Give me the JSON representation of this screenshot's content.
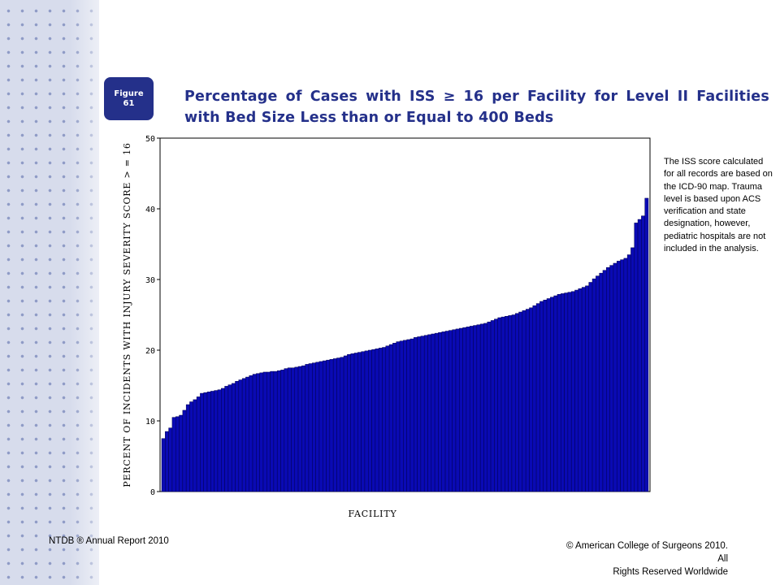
{
  "figure_badge": {
    "line1": "Figure",
    "line2": "61"
  },
  "title": "Percentage of Cases with ISS ≥ 16 per Facility for Level II Facilities with Bed Size Less than or Equal to 400 Beds",
  "note": "The ISS score calculated for all records are based on the ICD-90 map. Trauma level is based upon ACS verification and state designation, however, pediatric hospitals are not included in the analysis.",
  "footer": {
    "left": "NTDB ® Annual Report 2010",
    "right_line1": "© American College of Surgeons 2010.  All",
    "right_line2": "Rights Reserved Worldwide"
  },
  "colors": {
    "bar": "#0a0ab4",
    "bar_edge": "#000050",
    "title": "#24308a",
    "badge": "#24308a"
  },
  "chart_data": {
    "type": "bar",
    "xlabel": "FACILITY",
    "ylabel": "PERCENT OF INCIDENTS WITH INJURY SEVERITY SCORE > = 16",
    "ylim": [
      0,
      50
    ],
    "yticks": [
      "0",
      "10",
      "20",
      "30",
      "40",
      "50"
    ],
    "grid": false,
    "sorted": "ascending",
    "values": [
      7.5,
      8.5,
      9.0,
      10.5,
      10.6,
      10.8,
      11.5,
      12.3,
      12.7,
      13.0,
      13.4,
      13.9,
      14.0,
      14.1,
      14.2,
      14.3,
      14.4,
      14.6,
      14.9,
      15.1,
      15.3,
      15.6,
      15.8,
      16.0,
      16.2,
      16.4,
      16.6,
      16.7,
      16.8,
      16.9,
      16.9,
      17.0,
      17.0,
      17.1,
      17.2,
      17.4,
      17.5,
      17.5,
      17.6,
      17.7,
      17.8,
      18.0,
      18.1,
      18.2,
      18.3,
      18.4,
      18.5,
      18.6,
      18.7,
      18.8,
      18.9,
      19.0,
      19.2,
      19.4,
      19.5,
      19.6,
      19.7,
      19.8,
      19.9,
      20.0,
      20.1,
      20.2,
      20.3,
      20.4,
      20.6,
      20.8,
      21.0,
      21.2,
      21.3,
      21.4,
      21.5,
      21.6,
      21.8,
      21.9,
      22.0,
      22.1,
      22.2,
      22.3,
      22.4,
      22.5,
      22.6,
      22.7,
      22.8,
      22.9,
      23.0,
      23.1,
      23.2,
      23.3,
      23.4,
      23.5,
      23.6,
      23.7,
      23.8,
      24.0,
      24.2,
      24.4,
      24.6,
      24.7,
      24.8,
      24.9,
      25.0,
      25.2,
      25.4,
      25.6,
      25.8,
      26.0,
      26.3,
      26.6,
      26.9,
      27.1,
      27.3,
      27.5,
      27.7,
      27.9,
      28.0,
      28.1,
      28.2,
      28.3,
      28.5,
      28.7,
      28.9,
      29.1,
      29.6,
      30.1,
      30.5,
      30.9,
      31.3,
      31.7,
      32.0,
      32.3,
      32.6,
      32.8,
      33.0,
      33.5,
      34.5,
      38.0,
      38.5,
      39.0,
      41.5
    ]
  }
}
